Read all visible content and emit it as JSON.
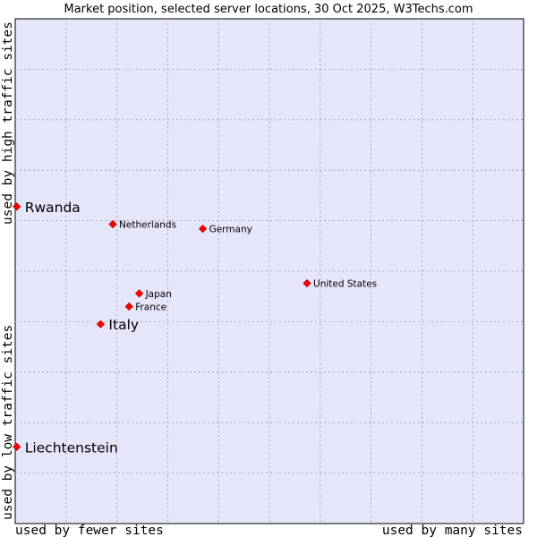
{
  "chart_data": {
    "type": "scatter",
    "title": "Market position, selected server locations, 30 Oct 2025, W3Techs.com",
    "xlabel_low": "used by fewer sites",
    "xlabel_high": "used by many sites",
    "ylabel_low": "used by low traffic sites",
    "ylabel_high": "used by high traffic sites",
    "xlim": [
      0,
      100
    ],
    "ylim": [
      0,
      100
    ],
    "grid": true,
    "points": [
      {
        "label": "Rwanda",
        "x": 0.3,
        "y": 62.8,
        "emphasized": true
      },
      {
        "label": "Netherlands",
        "x": 19.2,
        "y": 59.3,
        "emphasized": false
      },
      {
        "label": "Germany",
        "x": 36.9,
        "y": 58.4,
        "emphasized": false
      },
      {
        "label": "United States",
        "x": 57.4,
        "y": 47.6,
        "emphasized": false
      },
      {
        "label": "Japan",
        "x": 24.4,
        "y": 45.6,
        "emphasized": false
      },
      {
        "label": "France",
        "x": 22.4,
        "y": 43.0,
        "emphasized": false
      },
      {
        "label": "Italy",
        "x": 16.8,
        "y": 39.5,
        "emphasized": true
      },
      {
        "label": "Liechtenstein",
        "x": 0.3,
        "y": 15.2,
        "emphasized": true
      }
    ]
  },
  "colors": {
    "plot_bg": "#e6e6fa",
    "grid": "#9a9aaa",
    "marker": "#ff0000",
    "marker_stroke": "#a00000"
  }
}
